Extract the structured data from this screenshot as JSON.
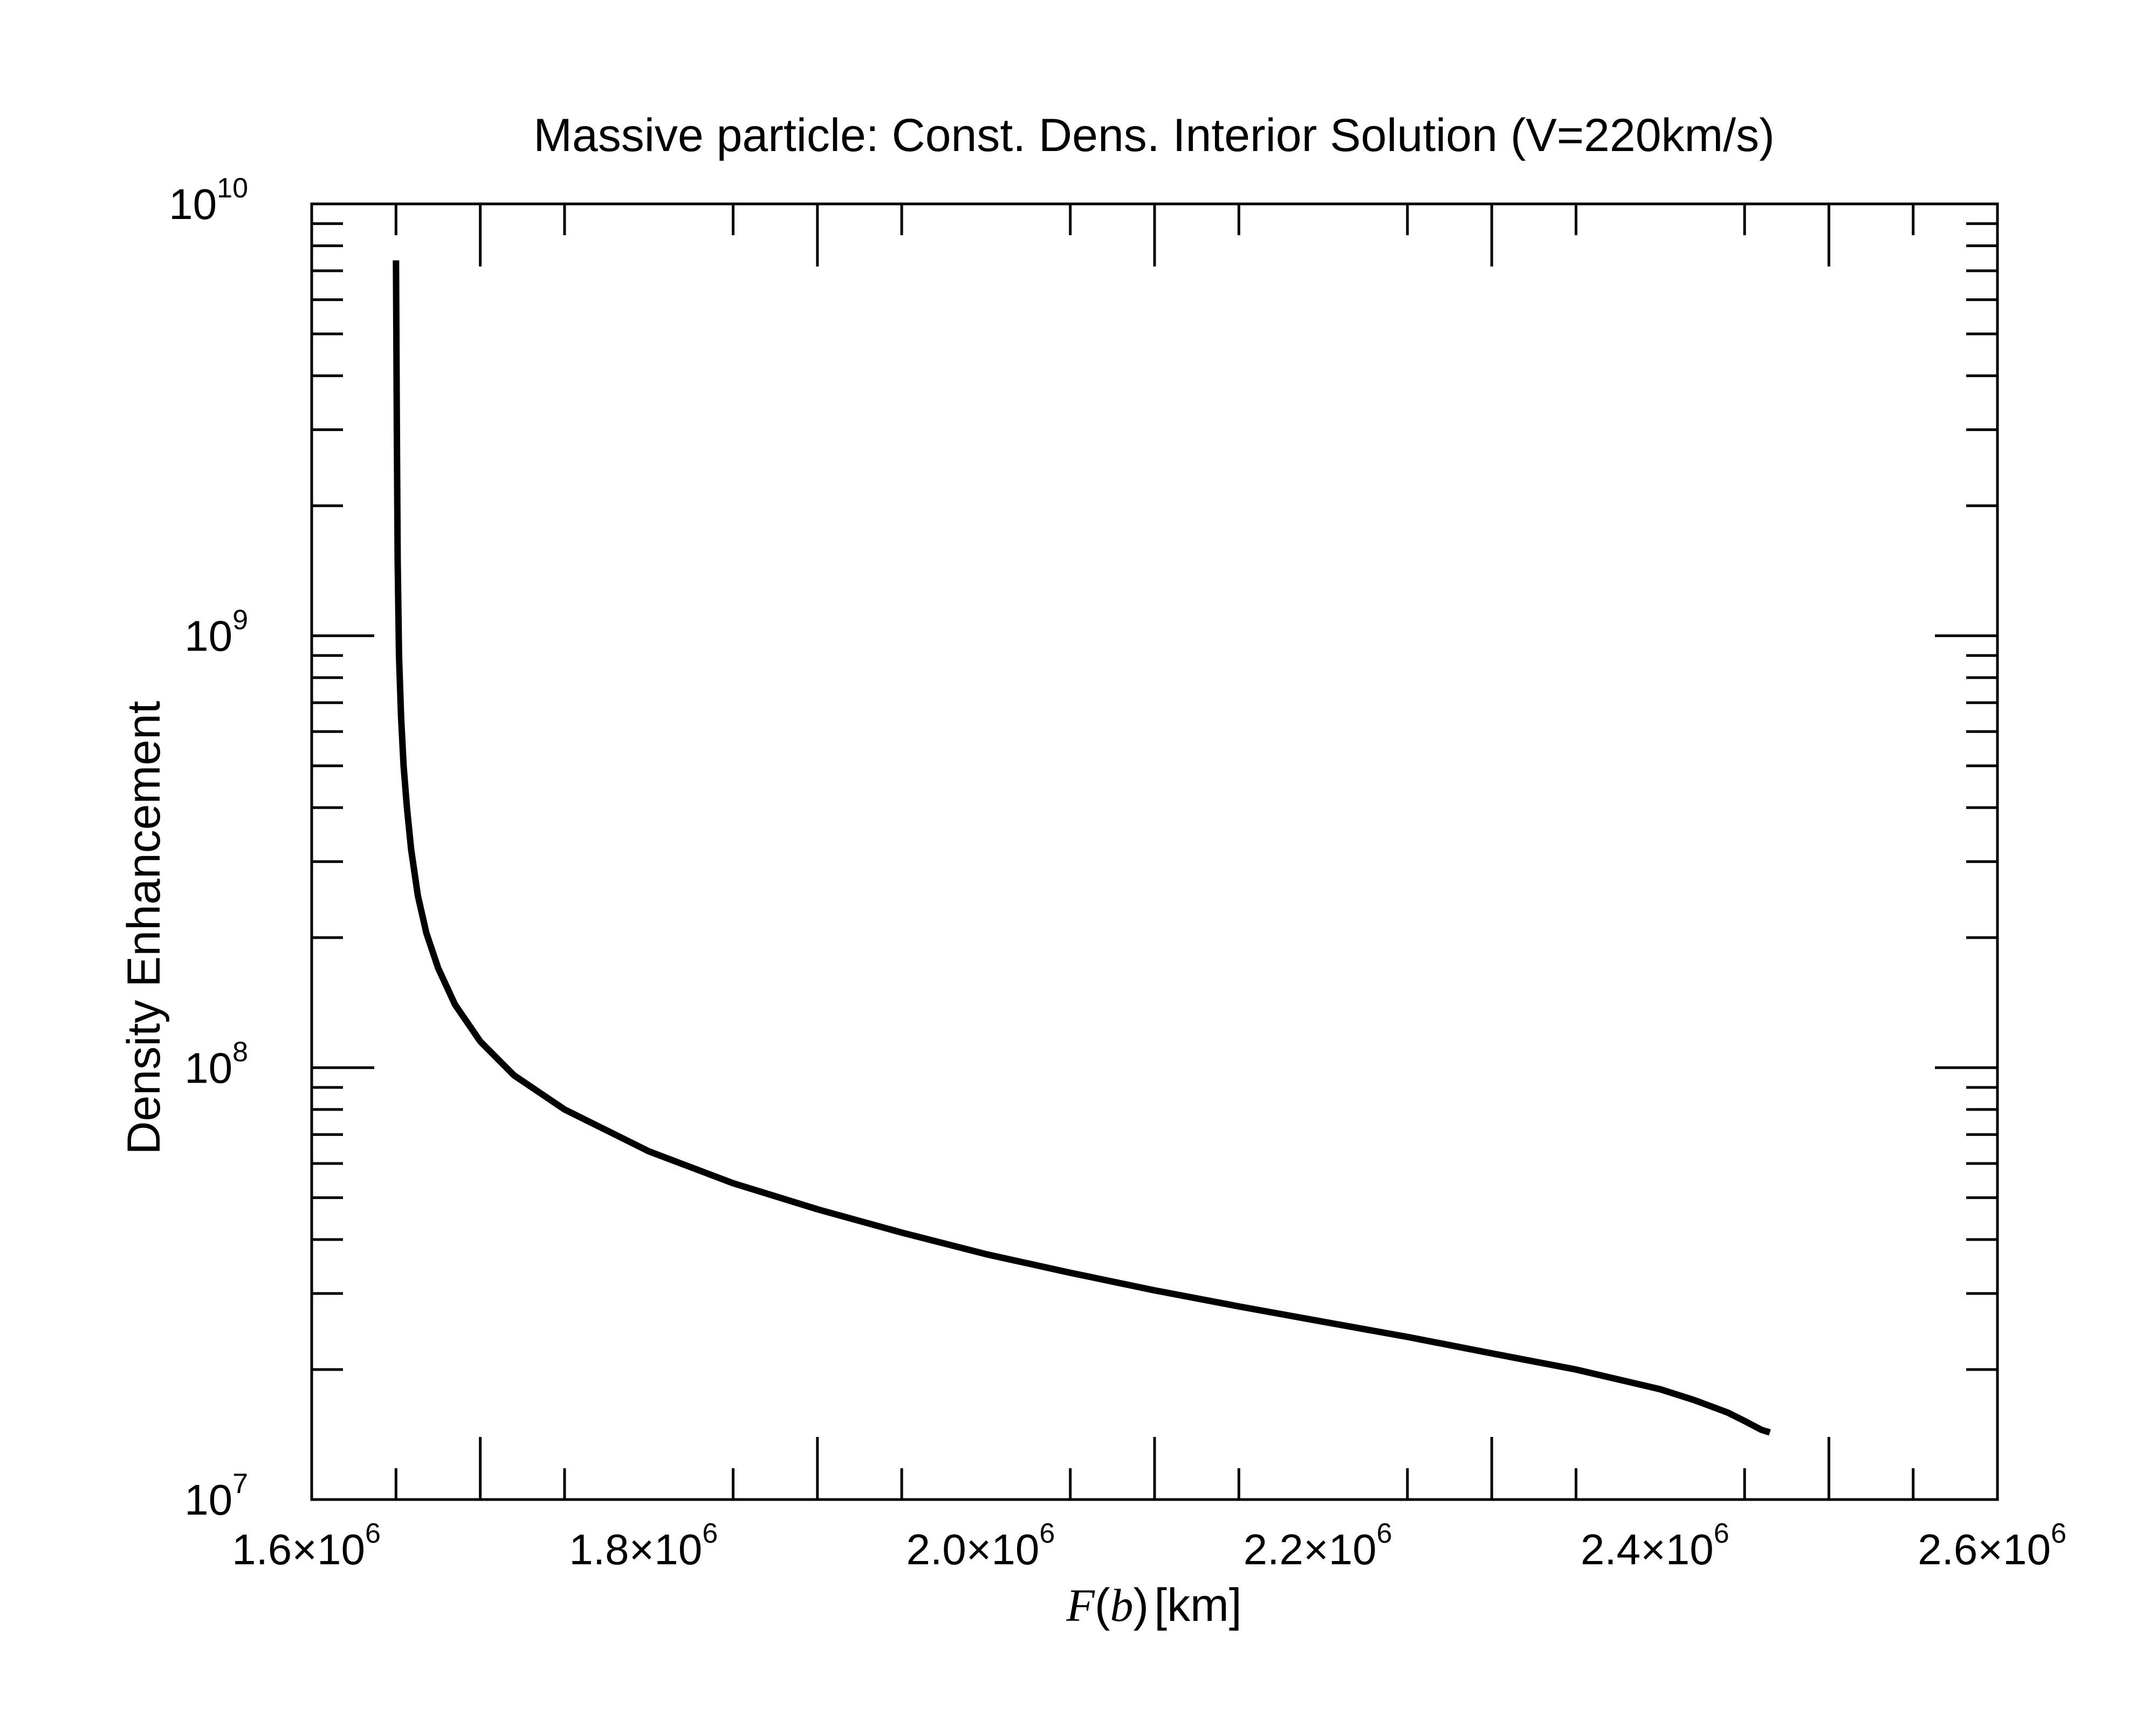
{
  "chart_data": {
    "type": "line",
    "title": "Massive particle: Const. Dens. Interior Solution (V=220km/s)",
    "ylabel": "Density Enhancement",
    "xlabel": {
      "func": "F",
      "open": "(",
      "arg": "b",
      "close": ")",
      "unit": "[km]"
    },
    "xlim": [
      1600000,
      2600000
    ],
    "ylim": [
      10000000,
      10000000000
    ],
    "yscale": "log",
    "grid": false,
    "x_ticks": [
      {
        "mantissa": "1.6×10",
        "exp": "6"
      },
      {
        "mantissa": "1.8×10",
        "exp": "6"
      },
      {
        "mantissa": "2.0×10",
        "exp": "6"
      },
      {
        "mantissa": "2.2×10",
        "exp": "6"
      },
      {
        "mantissa": "2.4×10",
        "exp": "6"
      },
      {
        "mantissa": "2.6×10",
        "exp": "6"
      }
    ],
    "y_ticks": [
      {
        "base": "10",
        "exp": "7"
      },
      {
        "base": "10",
        "exp": "8"
      },
      {
        "base": "10",
        "exp": "9"
      },
      {
        "base": "10",
        "exp": "10"
      }
    ],
    "series": [
      {
        "color": "#000000",
        "x": [
          1650000,
          1650500,
          1651000,
          1651800,
          1653000,
          1654500,
          1656500,
          1659000,
          1663000,
          1668000,
          1675000,
          1685000,
          1700000,
          1720000,
          1750000,
          1800000,
          1850000,
          1900000,
          1950000,
          2000000,
          2050000,
          2100000,
          2150000,
          2200000,
          2250000,
          2300000,
          2350000,
          2400000,
          2420000,
          2440000,
          2450000,
          2460000,
          2465000
        ],
        "y": [
          7400000000,
          3000000000,
          1500000000,
          900000000,
          650000000,
          500000000,
          400000000,
          320000000,
          250000000,
          205000000,
          170000000,
          140000000,
          115000000,
          96000000,
          80000000,
          64000000,
          54000000,
          47000000,
          41500000,
          37000000,
          33500000,
          30500000,
          28000000,
          25800000,
          23800000,
          21800000,
          20000000,
          18000000,
          17000000,
          15900000,
          15200000,
          14500000,
          14300000
        ]
      }
    ]
  }
}
